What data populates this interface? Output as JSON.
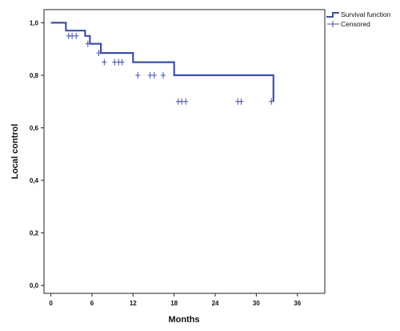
{
  "chart_data": {
    "type": "line",
    "xlabel": "Months",
    "ylabel": "Local control",
    "xlim": [
      -1,
      40
    ],
    "ylim": [
      -0.03,
      1.05
    ],
    "x_ticks": [
      0,
      6,
      12,
      18,
      24,
      30,
      36
    ],
    "x_tick_labels": [
      "0",
      "6",
      "12",
      "18",
      "24",
      "30",
      "36"
    ],
    "y_ticks": [
      0.0,
      0.2,
      0.4,
      0.6,
      0.8,
      1.0
    ],
    "y_tick_labels": [
      "0,0",
      "0,2",
      "0,4",
      "0,6",
      "0,8",
      "1,0"
    ],
    "grid": false,
    "legend_position": "top-right",
    "legend": [
      {
        "label": "Survival function",
        "style": "step-line"
      },
      {
        "label": "Censored",
        "style": "cross"
      }
    ],
    "series": [
      {
        "name": "Survival function",
        "color": "#3f51a5",
        "step_x": [
          0.0,
          1.5,
          2.2,
          5.0,
          5.7,
          7.3,
          12.0,
          18.0,
          32.5
        ],
        "step_y": [
          1.0,
          1.0,
          0.97,
          0.95,
          0.92,
          0.885,
          0.85,
          0.8,
          0.7
        ]
      },
      {
        "name": "Censored",
        "color": "#3f51a5",
        "points": [
          {
            "x": 2.6,
            "y": 0.95
          },
          {
            "x": 3.1,
            "y": 0.95
          },
          {
            "x": 3.7,
            "y": 0.95
          },
          {
            "x": 5.4,
            "y": 0.92
          },
          {
            "x": 7.0,
            "y": 0.885
          },
          {
            "x": 7.8,
            "y": 0.85
          },
          {
            "x": 9.3,
            "y": 0.85
          },
          {
            "x": 9.9,
            "y": 0.85
          },
          {
            "x": 10.4,
            "y": 0.85
          },
          {
            "x": 12.7,
            "y": 0.8
          },
          {
            "x": 14.5,
            "y": 0.8
          },
          {
            "x": 15.1,
            "y": 0.8
          },
          {
            "x": 16.4,
            "y": 0.8
          },
          {
            "x": 18.6,
            "y": 0.7
          },
          {
            "x": 19.1,
            "y": 0.7
          },
          {
            "x": 19.7,
            "y": 0.7
          },
          {
            "x": 27.3,
            "y": 0.7
          },
          {
            "x": 27.8,
            "y": 0.7
          },
          {
            "x": 32.2,
            "y": 0.7
          }
        ]
      }
    ]
  }
}
